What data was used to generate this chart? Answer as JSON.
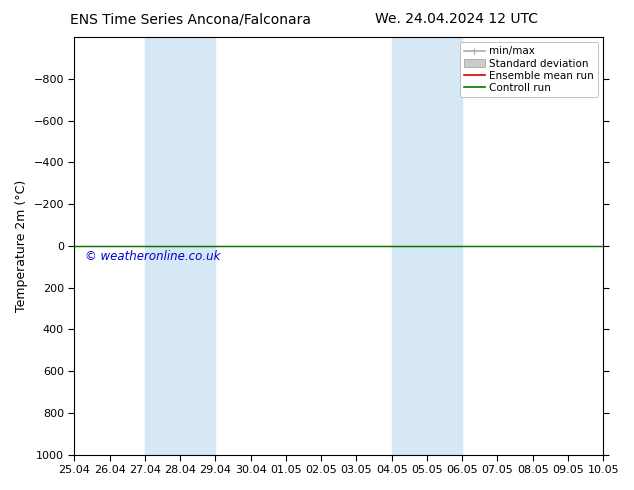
{
  "title_left": "ENS Time Series Ancona/Falconara",
  "title_right": "We. 24.04.2024 12 UTC",
  "ylabel": "Temperature 2m (°C)",
  "xlim": [
    0,
    15
  ],
  "ylim": [
    1000,
    -1000
  ],
  "yticks": [
    -800,
    -600,
    -400,
    -200,
    0,
    200,
    400,
    600,
    800,
    1000
  ],
  "xtick_labels": [
    "25.04",
    "26.04",
    "27.04",
    "28.04",
    "29.04",
    "30.04",
    "01.05",
    "02.05",
    "03.05",
    "04.05",
    "05.05",
    "06.05",
    "07.05",
    "08.05",
    "09.05",
    "10.05"
  ],
  "shaded_regions": [
    {
      "xmin": 2.0,
      "xmax": 4.0
    },
    {
      "xmin": 9.0,
      "xmax": 11.0
    }
  ],
  "shade_color": "#d6e8f5",
  "control_run_y": 0.0,
  "ensemble_mean_y": 0.0,
  "watermark": "© weatheronline.co.uk",
  "watermark_color": "#0000cc",
  "bg_color": "#ffffff",
  "plot_bg_color": "#ffffff",
  "control_run_color": "#007700",
  "ensemble_mean_color": "#cc0000",
  "minmax_color": "#aaaaaa",
  "std_dev_color": "#cccccc",
  "title_fontsize": 10,
  "tick_fontsize": 8,
  "ylabel_fontsize": 9,
  "legend_fontsize": 7.5
}
